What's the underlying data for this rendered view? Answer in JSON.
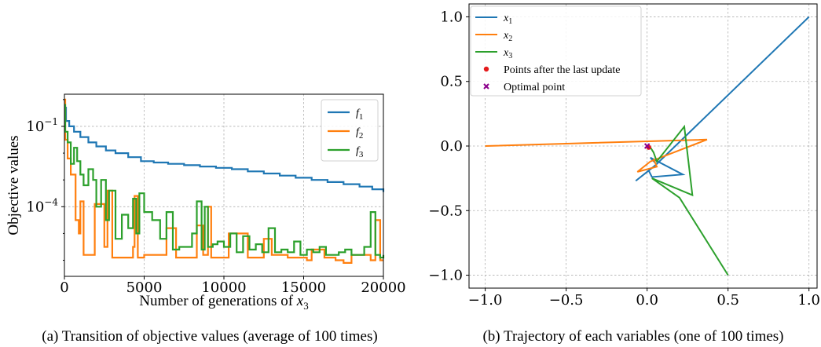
{
  "captions": {
    "a": "(a) Transition of objective values (average of 100 times)",
    "b": "(b) Trajectory of each variables (one of 100 times)"
  },
  "chart_data": [
    {
      "type": "line",
      "xlabel": "Number of generations of x3",
      "ylabel": "Objective values",
      "xlim": [
        0,
        20000
      ],
      "ylim_log10": [
        -6.6,
        0.2
      ],
      "yscale": "log",
      "xticks": [
        "0",
        "5000",
        "10000",
        "15000",
        "20000"
      ],
      "yticks": [
        {
          "base": "10",
          "exp": "−1",
          "log10": -1
        },
        {
          "base": "10",
          "exp": "−4",
          "log10": -4
        }
      ],
      "grid": true,
      "legend_position": "top-right",
      "series": [
        {
          "name": "f1",
          "color": "#1f77b4",
          "x": [
            0,
            100,
            300,
            600,
            1000,
            1500,
            2000,
            2600,
            3200,
            4000,
            4800,
            5600,
            6500,
            7500,
            8500,
            9500,
            10500,
            11500,
            12500,
            13500,
            14500,
            15500,
            16500,
            17500,
            18500,
            19300,
            20000
          ],
          "log10_y": [
            -0.3,
            -0.8,
            -1.0,
            -1.2,
            -1.4,
            -1.6,
            -1.75,
            -1.9,
            -2.0,
            -2.15,
            -2.3,
            -2.35,
            -2.4,
            -2.45,
            -2.5,
            -2.55,
            -2.6,
            -2.68,
            -2.76,
            -2.84,
            -2.92,
            -3.0,
            -3.08,
            -3.16,
            -3.25,
            -3.35,
            -3.45
          ]
        },
        {
          "name": "f2",
          "color": "#ff7f0e",
          "x": [
            0,
            50,
            200,
            400,
            700,
            900,
            1000,
            1200,
            1800,
            1900,
            2500,
            2700,
            3000,
            3600,
            4300,
            4400,
            4600,
            5000,
            6200,
            6400,
            7000,
            8100,
            8300,
            8700,
            9000,
            9200,
            10000,
            10300,
            11500,
            12300,
            12500,
            13000,
            14000,
            15200,
            15500,
            16300,
            17000,
            17500,
            18000,
            19200,
            19500,
            19800,
            20000
          ],
          "log10_y": [
            0.0,
            -1.5,
            -2.2,
            -2.8,
            -4.5,
            -5.0,
            -3.8,
            -5.8,
            -5.8,
            -3.9,
            -5.5,
            -3.4,
            -5.9,
            -5.9,
            -5.5,
            -3.6,
            -5.9,
            -5.8,
            -5.8,
            -4.8,
            -5.9,
            -5.9,
            -4.7,
            -5.8,
            -4.0,
            -5.9,
            -5.9,
            -5.0,
            -5.9,
            -5.9,
            -5.2,
            -5.8,
            -5.9,
            -6.0,
            -5.6,
            -5.9,
            -6.0,
            -6.1,
            -5.8,
            -6.0,
            -4.5,
            -6.0,
            -6.0
          ]
        },
        {
          "name": "f3",
          "color": "#2ca02c",
          "x": [
            0,
            50,
            200,
            400,
            600,
            800,
            1000,
            1200,
            1500,
            1800,
            2000,
            2300,
            2600,
            2800,
            3200,
            3600,
            4000,
            4300,
            4500,
            4700,
            5000,
            5500,
            6000,
            6400,
            6800,
            7200,
            7600,
            8000,
            8300,
            8600,
            8800,
            9000,
            9300,
            9600,
            10000,
            10400,
            10800,
            11200,
            11600,
            12000,
            12400,
            12800,
            13200,
            13600,
            14000,
            14400,
            14800,
            15200,
            15600,
            16000,
            16400,
            16800,
            17200,
            17600,
            18000,
            18400,
            18800,
            19200,
            19500,
            19800,
            20000
          ],
          "log10_y": [
            -0.2,
            -1.2,
            -1.6,
            -2.4,
            -1.8,
            -2.3,
            -2.8,
            -3.2,
            -2.6,
            -3.0,
            -4.0,
            -3.0,
            -4.5,
            -3.4,
            -5.2,
            -4.3,
            -4.8,
            -3.7,
            -5.0,
            -3.5,
            -4.2,
            -4.5,
            -5.2,
            -4.2,
            -5.6,
            -5.5,
            -5.5,
            -5.0,
            -3.8,
            -5.6,
            -4.0,
            -5.5,
            -5.4,
            -5.3,
            -5.5,
            -5.0,
            -5.7,
            -5.1,
            -5.6,
            -5.4,
            -5.7,
            -4.8,
            -5.7,
            -5.6,
            -5.7,
            -5.3,
            -5.8,
            -5.6,
            -5.7,
            -5.5,
            -5.8,
            -5.8,
            -5.7,
            -5.6,
            -5.8,
            -5.8,
            -5.5,
            -4.2,
            -5.8,
            -5.9,
            -5.8
          ]
        }
      ]
    },
    {
      "type": "line",
      "xlim": [
        -1.1,
        1.05
      ],
      "ylim": [
        -1.1,
        1.1
      ],
      "xticks": [
        "−1.0",
        "−0.5",
        "0.0",
        "0.5",
        "1.0"
      ],
      "yticks": [
        "1.0",
        "0.5",
        "0.0",
        "−0.5",
        "−1.0"
      ],
      "grid": true,
      "legend_position": "top-left",
      "series": [
        {
          "name": "x1",
          "color": "#1f77b4",
          "x": [
            1.0,
            0.05,
            -0.07,
            0.01,
            0.03,
            0.22,
            0.02,
            0.05
          ],
          "y": [
            1.0,
            -0.15,
            -0.27,
            -0.19,
            -0.24,
            -0.22,
            -0.09,
            -0.13
          ]
        },
        {
          "name": "x2",
          "color": "#ff7f0e",
          "x": [
            -1.0,
            0.37,
            0.02,
            -0.06,
            0.06,
            0.04
          ],
          "y": [
            0.0,
            0.05,
            -0.12,
            -0.2,
            -0.16,
            -0.1
          ]
        },
        {
          "name": "x3",
          "color": "#2ca02c",
          "x": [
            0.5,
            0.2,
            0.03,
            0.28,
            0.23,
            0.06,
            0.04,
            0.02
          ],
          "y": [
            -1.0,
            -0.4,
            -0.25,
            -0.38,
            0.15,
            -0.12,
            -0.05,
            -0.01
          ]
        },
        {
          "name": "Points after the last update",
          "color": "#e41a1c",
          "kind": "points",
          "x": [
            0.01
          ],
          "y": [
            -0.01
          ]
        },
        {
          "name": "Optimal point",
          "color": "#8b008b",
          "kind": "x-marker",
          "x": [
            0.0
          ],
          "y": [
            0.0
          ]
        }
      ],
      "legend": [
        {
          "label": "x",
          "sub": "1",
          "kind": "line",
          "color": "#1f77b4"
        },
        {
          "label": "x",
          "sub": "2",
          "kind": "line",
          "color": "#ff7f0e"
        },
        {
          "label": "x",
          "sub": "3",
          "kind": "line",
          "color": "#2ca02c"
        },
        {
          "label": "Points after the last update",
          "kind": "dot",
          "color": "#e41a1c"
        },
        {
          "label": "Optimal point",
          "kind": "cross",
          "color": "#8b008b"
        }
      ]
    }
  ],
  "legend_a": [
    {
      "label": "f",
      "sub": "1",
      "color": "#1f77b4"
    },
    {
      "label": "f",
      "sub": "2",
      "color": "#ff7f0e"
    },
    {
      "label": "f",
      "sub": "3",
      "color": "#2ca02c"
    }
  ]
}
